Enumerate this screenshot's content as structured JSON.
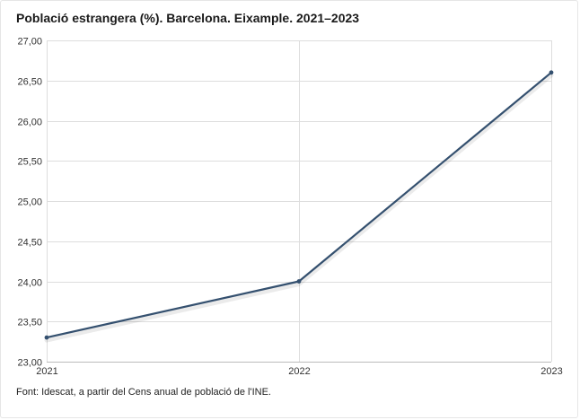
{
  "title": "Població estrangera (%). Barcelona. Eixample. 2021–2023",
  "source": "Font: Idescat, a partir del Cens anual de població de l'INE.",
  "chart_data": {
    "type": "line",
    "title": "Població estrangera (%). Barcelona. Eixample. 2021–2023",
    "xlabel": "",
    "ylabel": "",
    "x": [
      "2021",
      "2022",
      "2023"
    ],
    "series": [
      {
        "values": [
          23.3,
          24.0,
          26.6
        ]
      }
    ],
    "ylim": [
      23.0,
      27.0
    ],
    "y_ticks": [
      23.0,
      23.5,
      24.0,
      24.5,
      25.0,
      25.5,
      26.0,
      26.5,
      27.0
    ],
    "y_tick_labels": [
      "23,00",
      "23,50",
      "24,00",
      "24,50",
      "25,00",
      "25,50",
      "26,00",
      "26,50",
      "27,00"
    ],
    "grid": true,
    "legend": "none",
    "colors": {
      "line": "#34506f",
      "grid": "#dddddd",
      "axis": "#bbbbbb"
    }
  }
}
